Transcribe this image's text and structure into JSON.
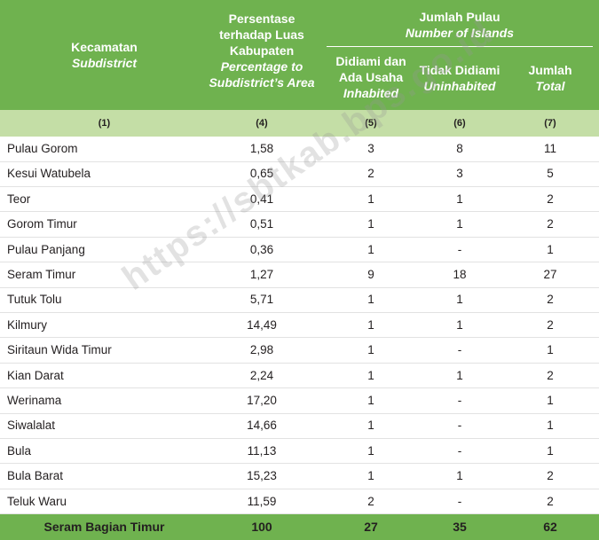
{
  "header": {
    "col1": {
      "line1": "Kecamatan",
      "line2": "Subdistrict"
    },
    "col4": {
      "l1": "Persentase",
      "l2": "terhadap Luas",
      "l3": "Kabupaten",
      "l4": "Percentage to",
      "l5": "Subdistrict’s Area"
    },
    "group": {
      "l1": "Jumlah Pulau",
      "l2": "Number of Islands"
    },
    "col5": {
      "l1": "Didiami dan",
      "l2": "Ada Usaha",
      "l3": "Inhabited"
    },
    "col6": {
      "l1": "Tidak Didiami",
      "l2": "Uninhabited"
    },
    "col7": {
      "l1": "Jumlah",
      "l2": "Total"
    }
  },
  "col_numbers": [
    "(1)",
    "(4)",
    "(5)",
    "(6)",
    "(7)"
  ],
  "rows": [
    {
      "name": "Pulau Gorom",
      "pct": "1,58",
      "inhabited": "3",
      "uninhabited": "8",
      "total": "11"
    },
    {
      "name": "Kesui Watubela",
      "pct": "0,65",
      "inhabited": "2",
      "uninhabited": "3",
      "total": "5"
    },
    {
      "name": "Teor",
      "pct": "0,41",
      "inhabited": "1",
      "uninhabited": "1",
      "total": "2"
    },
    {
      "name": "Gorom Timur",
      "pct": "0,51",
      "inhabited": "1",
      "uninhabited": "1",
      "total": "2"
    },
    {
      "name": "Pulau Panjang",
      "pct": "0,36",
      "inhabited": "1",
      "uninhabited": "-",
      "total": "1"
    },
    {
      "name": "Seram Timur",
      "pct": "1,27",
      "inhabited": "9",
      "uninhabited": "18",
      "total": "27"
    },
    {
      "name": "Tutuk Tolu",
      "pct": "5,71",
      "inhabited": "1",
      "uninhabited": "1",
      "total": "2"
    },
    {
      "name": "Kilmury",
      "pct": "14,49",
      "inhabited": "1",
      "uninhabited": "1",
      "total": "2"
    },
    {
      "name": "Siritaun Wida Timur",
      "pct": "2,98",
      "inhabited": "1",
      "uninhabited": "-",
      "total": "1"
    },
    {
      "name": "Kian  Darat",
      "pct": "2,24",
      "inhabited": "1",
      "uninhabited": "1",
      "total": "2"
    },
    {
      "name": "Werinama",
      "pct": "17,20",
      "inhabited": "1",
      "uninhabited": "-",
      "total": "1"
    },
    {
      "name": "Siwalalat",
      "pct": "14,66",
      "inhabited": "1",
      "uninhabited": "-",
      "total": "1"
    },
    {
      "name": "Bula",
      "pct": "11,13",
      "inhabited": "1",
      "uninhabited": "-",
      "total": "1"
    },
    {
      "name": "Bula Barat",
      "pct": "15,23",
      "inhabited": "1",
      "uninhabited": "1",
      "total": "2"
    },
    {
      "name": "Teluk Waru",
      "pct": "11,59",
      "inhabited": "2",
      "uninhabited": "-",
      "total": "2"
    }
  ],
  "total": {
    "name": "Seram Bagian Timur",
    "pct": "100",
    "inhabited": "27",
    "uninhabited": "35",
    "total": "62"
  },
  "watermark": "https://sbtkab.bps.go.id",
  "colors": {
    "header_green": "#6fb24f",
    "subheader_green": "#c4dea6"
  }
}
